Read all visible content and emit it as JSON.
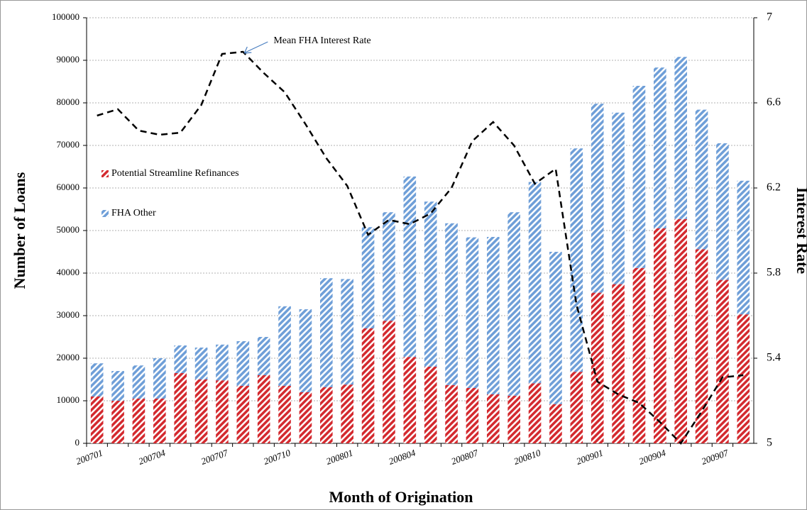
{
  "chart_data": {
    "type": "bar",
    "x_label": "Month of Origination",
    "y_label": "Number of Loans",
    "y2_label": "Interest Rate",
    "categories": [
      "200701",
      null,
      null,
      "200704",
      null,
      null,
      "200707",
      null,
      null,
      "200710",
      null,
      null,
      "200801",
      null,
      null,
      "200804",
      null,
      null,
      "200807",
      null,
      null,
      "200810",
      null,
      null,
      "200901",
      null,
      null,
      "200904",
      null,
      null,
      "200907",
      null
    ],
    "series": [
      {
        "name": "Potential Streamline Refinances",
        "color": "#d42a2f",
        "values": [
          11000,
          10000,
          10500,
          10500,
          16500,
          15000,
          14800,
          13500,
          16000,
          13500,
          12000,
          13200,
          13800,
          27000,
          28800,
          20300,
          18000,
          13700,
          13000,
          11500,
          11200,
          14100,
          9200,
          16800,
          35400,
          37400,
          41200,
          50500,
          52700,
          45600,
          38400,
          30300
        ]
      },
      {
        "name": "FHA Other",
        "color": "#6f9fd8",
        "values": [
          7800,
          7000,
          7800,
          9500,
          6500,
          7500,
          8400,
          10500,
          9000,
          18700,
          19500,
          25600,
          24800,
          23800,
          25500,
          42400,
          38800,
          38000,
          35400,
          37000,
          43100,
          47300,
          35800,
          52500,
          44400,
          40300,
          42800,
          37800,
          38100,
          32800,
          32100,
          31400
        ]
      },
      {
        "name": "Mean FHA Interest Rate",
        "type": "line",
        "axis": "y2",
        "color": "#000000",
        "values": [
          6.54,
          6.57,
          6.47,
          6.45,
          6.46,
          6.59,
          6.83,
          6.84,
          6.74,
          6.65,
          6.5,
          6.34,
          6.21,
          5.98,
          6.05,
          6.03,
          6.08,
          6.2,
          6.42,
          6.51,
          6.4,
          6.22,
          6.29,
          5.65,
          5.29,
          5.23,
          5.19,
          5.1,
          5.0,
          5.15,
          5.31,
          5.32
        ]
      }
    ],
    "stacked": true,
    "ylim": [
      0,
      100000
    ],
    "yticks": [
      0,
      10000,
      20000,
      30000,
      40000,
      50000,
      60000,
      70000,
      80000,
      90000,
      100000
    ],
    "y2lim": [
      5,
      7
    ],
    "y2ticks": [
      5,
      5.4,
      5.8,
      6.2,
      6.6,
      7
    ],
    "grid": true,
    "legend": "left"
  }
}
